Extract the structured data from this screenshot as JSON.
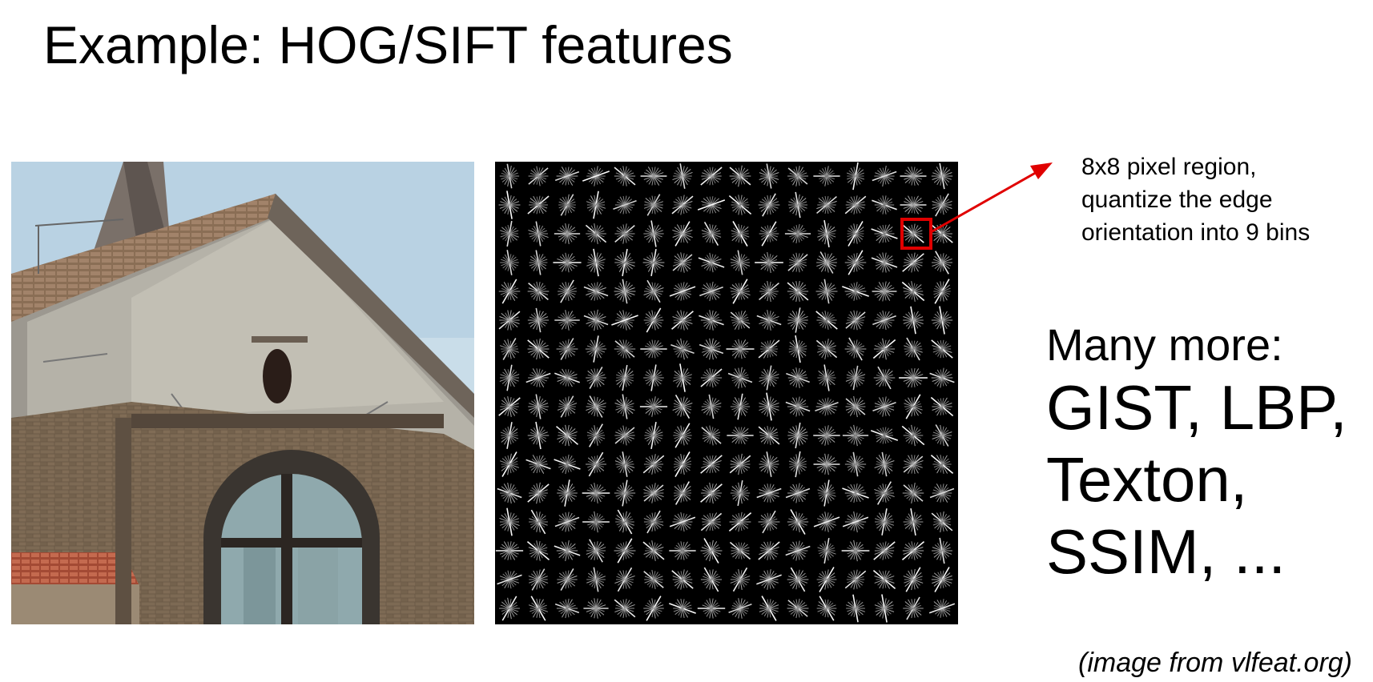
{
  "slide": {
    "title": "Example: HOG/SIFT features",
    "callout": {
      "lines": [
        "8x8 pixel region,",
        "quantize the edge",
        "orientation into 9 bins"
      ]
    },
    "more": {
      "heading": "Many more:",
      "lines": [
        "GIST, LBP,",
        "Texton,",
        "SSIM, ..."
      ]
    },
    "credit": "(image from vlfeat.org)"
  },
  "images": {
    "photo_icon": "building-photo",
    "hog_icon": "hog-visualization"
  },
  "colors": {
    "highlight": "#e00000",
    "hog_background": "#000000",
    "hog_lines": "#ffffff"
  }
}
